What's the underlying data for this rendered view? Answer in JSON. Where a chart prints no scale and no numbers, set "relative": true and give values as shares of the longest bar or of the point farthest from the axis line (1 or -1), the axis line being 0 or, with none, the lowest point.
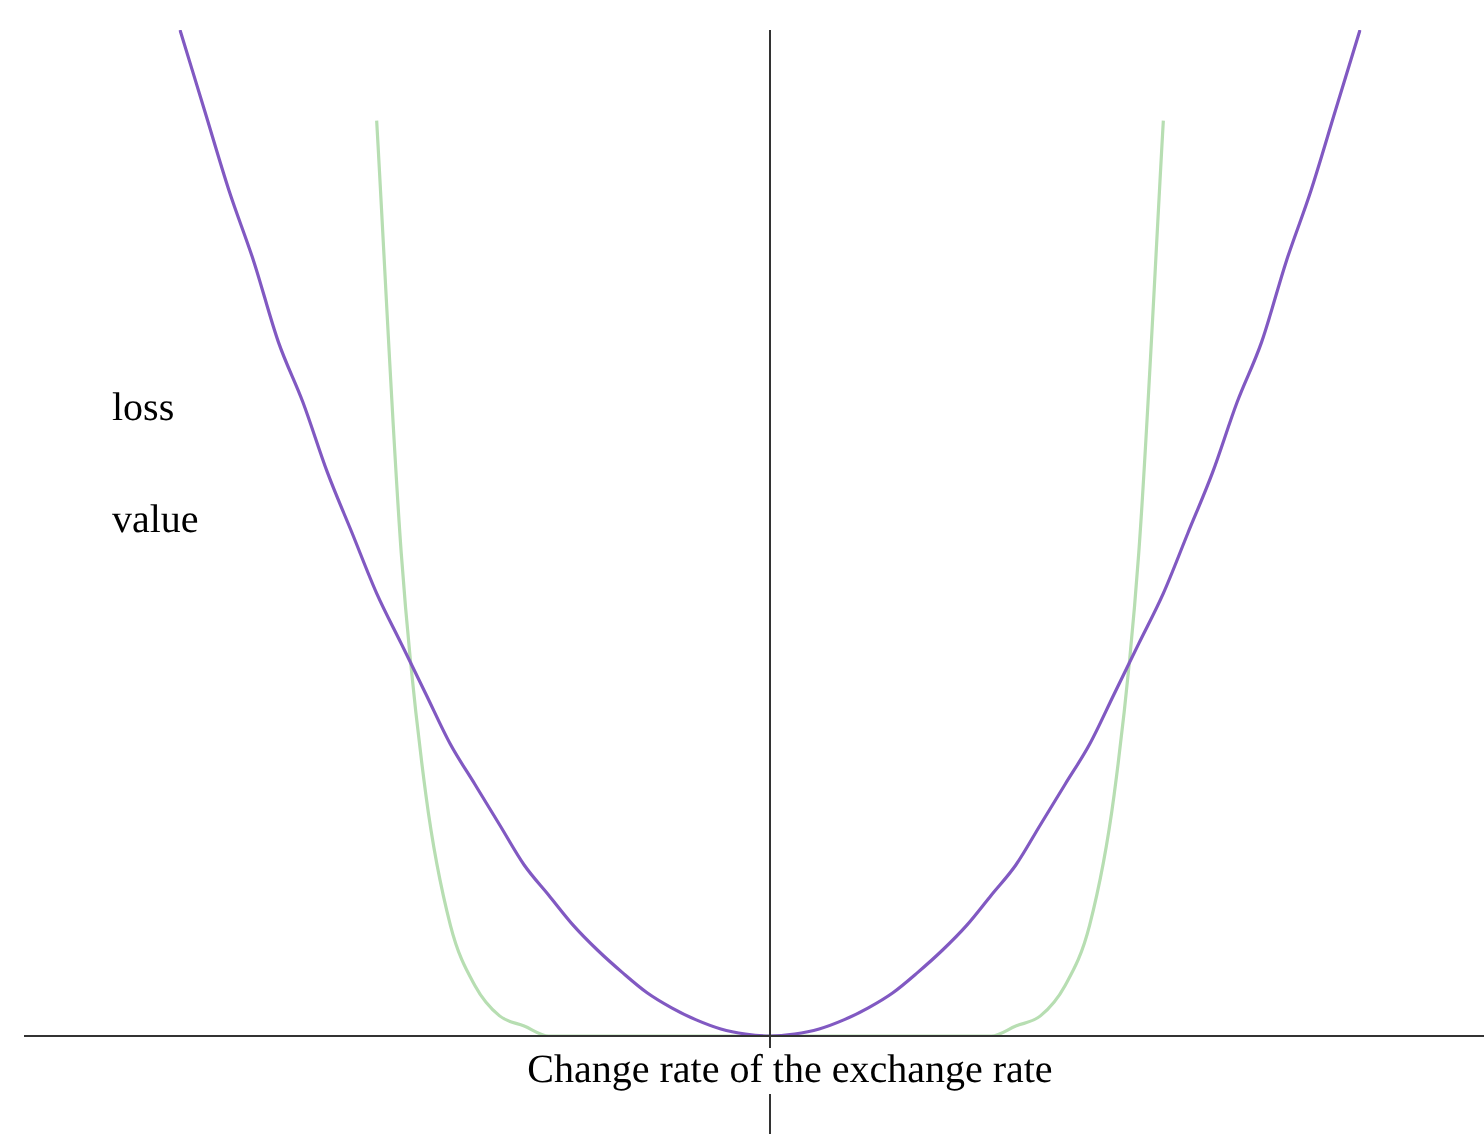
{
  "chart_data": {
    "type": "line",
    "relative": true,
    "xlabel": "Change rate of the exchange rate",
    "ylabel": "loss value",
    "marker": "none",
    "categories": [
      null,
      null,
      null,
      null,
      null,
      null,
      null,
      null,
      null,
      null,
      null,
      null,
      null,
      null,
      null,
      null,
      null,
      null,
      null,
      null,
      null,
      null,
      null,
      null,
      null,
      null,
      null,
      null,
      null,
      null,
      null,
      null,
      null,
      null,
      null,
      null,
      null,
      null,
      null,
      null,
      null,
      null,
      null,
      null,
      null,
      null,
      null,
      null,
      null
    ],
    "series": [
      {
        "color": "#8159c2",
        "values": [
          1,
          0.92,
          0.84,
          0.77,
          0.69,
          0.63,
          0.56,
          0.5,
          0.44,
          0.39,
          0.34,
          0.29,
          0.25,
          0.21,
          0.17,
          0.14,
          0.11,
          0.085,
          0.063,
          0.043,
          0.028,
          0.016,
          0.007,
          0.002,
          0,
          0.002,
          0.007,
          0.016,
          0.028,
          0.043,
          0.063,
          0.085,
          0.11,
          0.14,
          0.17,
          0.21,
          0.25,
          0.29,
          0.34,
          0.39,
          0.44,
          0.5,
          0.56,
          0.63,
          0.69,
          0.77,
          0.84,
          0.92,
          1
        ]
      },
      {
        "color": "#b7deb2",
        "values": [
          null,
          null,
          null,
          null,
          null,
          null,
          null,
          null,
          0.91,
          0.48,
          0.24,
          0.11,
          0.05,
          0.02,
          0.01,
          0,
          0,
          0,
          0,
          0,
          0,
          0,
          0,
          0,
          0,
          0,
          0,
          0,
          0,
          0,
          0,
          0,
          0,
          0,
          0.01,
          0.02,
          0.05,
          0.11,
          0.24,
          0.48,
          0.91,
          null,
          null,
          null,
          null,
          null,
          null,
          null,
          null
        ]
      }
    ]
  }
}
